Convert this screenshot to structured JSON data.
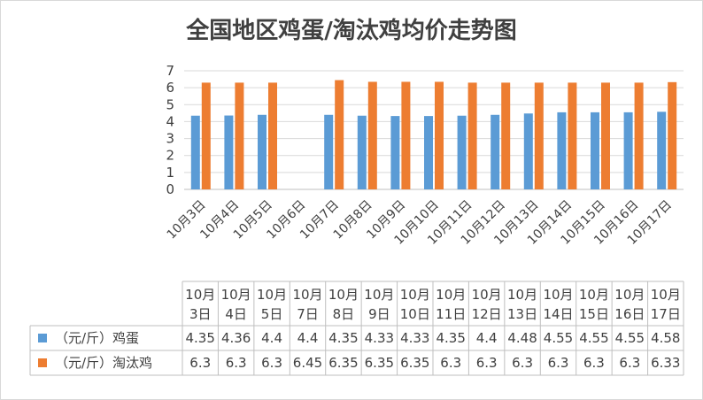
{
  "chart_data": {
    "type": "bar",
    "title": "全国地区鸡蛋/淘汰鸡均价走势图",
    "categories": [
      "10月3日",
      "10月4日",
      "10月5日",
      "10月6日",
      "10月7日",
      "10月8日",
      "10月9日",
      "10月10日",
      "10月11日",
      "10月12日",
      "10月13日",
      "10月14日",
      "10月15日",
      "10月16日",
      "10月17日"
    ],
    "series": [
      {
        "name": "（元/斤）鸡蛋",
        "color": "#5b9bd5",
        "values": [
          4.35,
          4.36,
          4.4,
          null,
          4.4,
          4.35,
          4.33,
          4.33,
          4.35,
          4.4,
          4.48,
          4.55,
          4.55,
          4.55,
          4.58
        ]
      },
      {
        "name": "（元/斤）淘汰鸡",
        "color": "#ed7d31",
        "values": [
          6.3,
          6.3,
          6.3,
          null,
          6.45,
          6.35,
          6.35,
          6.35,
          6.3,
          6.3,
          6.3,
          6.3,
          6.3,
          6.3,
          6.33
        ]
      }
    ],
    "ylim": [
      0,
      7
    ],
    "yticks": [
      0,
      1,
      2,
      3,
      4,
      5,
      6,
      7
    ],
    "grid": true,
    "data_table": {
      "categories": [
        "10月3日",
        "10月4日",
        "10月5日",
        "10月7日",
        "10月8日",
        "10月9日",
        "10月10日",
        "10月11日",
        "10月12日",
        "10月13日",
        "10月14日",
        "10月15日",
        "10月16日",
        "10月17日"
      ],
      "rows": [
        {
          "name": "（元/斤）鸡蛋",
          "values": [
            "4.35",
            "4.36",
            "4.4",
            "4.4",
            "4.35",
            "4.33",
            "4.33",
            "4.35",
            "4.4",
            "4.48",
            "4.55",
            "4.55",
            "4.55",
            "4.58"
          ]
        },
        {
          "name": "（元/斤）淘汰鸡",
          "values": [
            "6.3",
            "6.3",
            "6.3",
            "6.45",
            "6.35",
            "6.35",
            "6.35",
            "6.3",
            "6.3",
            "6.3",
            "6.3",
            "6.3",
            "6.3",
            "6.33"
          ]
        }
      ]
    }
  }
}
